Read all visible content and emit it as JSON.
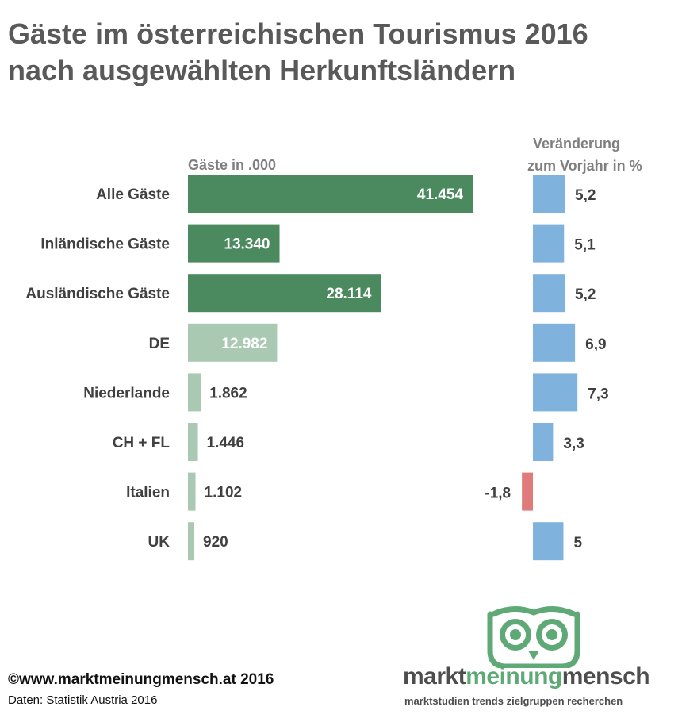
{
  "title_line1": "Gäste im österreichischen Tourismus 2016",
  "title_line2": "nach ausgewählten Herkunftsländern",
  "chart_data": {
    "type": "bar",
    "categories": [
      "Alle Gäste",
      "Inländische Gäste",
      "Ausländische Gäste",
      "DE",
      "Niederlande",
      "CH + FL",
      "Italien",
      "UK"
    ],
    "series": [
      {
        "name": "Gäste in .000",
        "values": [
          41454,
          13340,
          28114,
          12982,
          1862,
          1446,
          1102,
          920
        ],
        "labels": [
          "41.454",
          "13.340",
          "28.114",
          "12.982",
          "1.862",
          "1.446",
          "1.102",
          "920"
        ]
      },
      {
        "name": "Veränderung zum Vorjahr in %",
        "values": [
          5.2,
          5.1,
          5.2,
          6.9,
          7.3,
          3.3,
          -1.8,
          5
        ],
        "labels": [
          "5,2",
          "5,1",
          "5,2",
          "6,9",
          "7,3",
          "3,3",
          "-1,8",
          "5"
        ]
      }
    ],
    "headers": {
      "guests": "Gäste in .000",
      "change_line1": "Veränderung",
      "change_line2": "zum Vorjahr in %"
    },
    "colors": {
      "total": "#4a8a5e",
      "country": "#a9c9b3",
      "positive": "#7fb3de",
      "negative": "#e07b7b",
      "category_text": "#404040",
      "header_text": "#7f7f7f",
      "inside_label": "#ffffff",
      "outside_label": "#404040"
    },
    "orientation": "horizontal",
    "grid": false,
    "legend": "none"
  },
  "footer": {
    "copyright": "©www.marktmeinungmensch.at 2016",
    "source": "Daten: Statistik Austria 2016"
  },
  "logo": {
    "word1": "markt",
    "word2": "meinung",
    "word3": "mensch",
    "tagline": "marktstudien trends zielgruppen recherchen",
    "owl_color": "#5fa977"
  }
}
